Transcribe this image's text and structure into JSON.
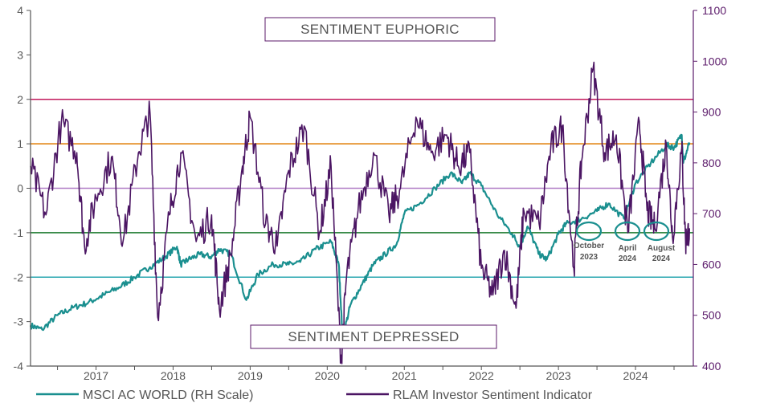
{
  "chart_data": {
    "type": "line",
    "title": "",
    "left_axis": {
      "label": "",
      "ylim": [
        -4,
        4
      ],
      "ticks": [
        "4",
        "3",
        "2",
        "1",
        "0",
        "-1",
        "-2",
        "-3",
        "-4"
      ],
      "color": "#5a5a5a"
    },
    "right_axis": {
      "label": "",
      "ylim": [
        400,
        1100
      ],
      "ticks": [
        "1100",
        "1000",
        "900",
        "800",
        "700",
        "600",
        "500",
        "400"
      ],
      "color": "#5b1a6a"
    },
    "x_axis": {
      "xlim": [
        2016.15,
        2024.75
      ],
      "tick_labels": [
        "2017",
        "2018",
        "2019",
        "2020",
        "2021",
        "2022",
        "2023",
        "2024"
      ],
      "tick_values": [
        2017,
        2018,
        2019,
        2020,
        2021,
        2022,
        2023,
        2024
      ]
    },
    "reference_lines": [
      {
        "y": 2,
        "color": "#c2185b"
      },
      {
        "y": 1,
        "color": "#e07b00"
      },
      {
        "y": 0,
        "color": "#b07cc6"
      },
      {
        "y": -1,
        "color": "#1b7a2e"
      },
      {
        "y": -2,
        "color": "#2aa7b0"
      }
    ],
    "series": [
      {
        "name": "MSCI AC WORLD (RH Scale)",
        "axis": "right",
        "color": "#1a8f8f",
        "points": [
          [
            2016.15,
            480
          ],
          [
            2016.3,
            472
          ],
          [
            2016.5,
            500
          ],
          [
            2016.7,
            515
          ],
          [
            2016.9,
            525
          ],
          [
            2017.1,
            540
          ],
          [
            2017.3,
            555
          ],
          [
            2017.5,
            575
          ],
          [
            2017.7,
            595
          ],
          [
            2017.9,
            615
          ],
          [
            2018.05,
            635
          ],
          [
            2018.1,
            600
          ],
          [
            2018.2,
            610
          ],
          [
            2018.35,
            620
          ],
          [
            2018.5,
            615
          ],
          [
            2018.6,
            630
          ],
          [
            2018.75,
            620
          ],
          [
            2018.95,
            530
          ],
          [
            2019.1,
            580
          ],
          [
            2019.3,
            600
          ],
          [
            2019.5,
            600
          ],
          [
            2019.65,
            605
          ],
          [
            2019.85,
            630
          ],
          [
            2020.05,
            645
          ],
          [
            2020.15,
            600
          ],
          [
            2020.2,
            455
          ],
          [
            2020.3,
            520
          ],
          [
            2020.45,
            560
          ],
          [
            2020.6,
            600
          ],
          [
            2020.75,
            620
          ],
          [
            2020.9,
            640
          ],
          [
            2021.0,
            700
          ],
          [
            2021.2,
            720
          ],
          [
            2021.4,
            750
          ],
          [
            2021.6,
            780
          ],
          [
            2021.75,
            760
          ],
          [
            2021.85,
            780
          ],
          [
            2022.0,
            755
          ],
          [
            2022.2,
            700
          ],
          [
            2022.4,
            660
          ],
          [
            2022.5,
            635
          ],
          [
            2022.6,
            675
          ],
          [
            2022.75,
            620
          ],
          [
            2022.85,
            610
          ],
          [
            2023.0,
            660
          ],
          [
            2023.1,
            680
          ],
          [
            2023.3,
            690
          ],
          [
            2023.5,
            705
          ],
          [
            2023.65,
            720
          ],
          [
            2023.85,
            690
          ],
          [
            2024.0,
            760
          ],
          [
            2024.2,
            800
          ],
          [
            2024.4,
            835
          ],
          [
            2024.5,
            830
          ],
          [
            2024.6,
            855
          ],
          [
            2024.62,
            800
          ],
          [
            2024.7,
            840
          ]
        ]
      },
      {
        "name": "RLAM Investor Sentiment Indicator",
        "axis": "left",
        "color": "#4b1563",
        "points": [
          [
            2016.15,
            0.5
          ],
          [
            2016.35,
            -0.6
          ],
          [
            2016.55,
            1.5
          ],
          [
            2016.75,
            0.8
          ],
          [
            2016.85,
            -1.3
          ],
          [
            2017.0,
            -0.2
          ],
          [
            2017.2,
            0.7
          ],
          [
            2017.35,
            -1.2
          ],
          [
            2017.55,
            0.8
          ],
          [
            2017.7,
            1.7
          ],
          [
            2017.8,
            -2.9
          ],
          [
            2017.95,
            -0.6
          ],
          [
            2018.1,
            0.8
          ],
          [
            2018.3,
            -1.2
          ],
          [
            2018.5,
            -0.6
          ],
          [
            2018.6,
            -2.7
          ],
          [
            2018.75,
            -1.5
          ],
          [
            2018.9,
            0.5
          ],
          [
            2019.0,
            1.6
          ],
          [
            2019.2,
            -0.8
          ],
          [
            2019.35,
            -1.3
          ],
          [
            2019.5,
            0.4
          ],
          [
            2019.7,
            1.4
          ],
          [
            2019.9,
            -1.0
          ],
          [
            2020.05,
            0.5
          ],
          [
            2020.18,
            -3.9
          ],
          [
            2020.25,
            -2.0
          ],
          [
            2020.4,
            -0.5
          ],
          [
            2020.6,
            0.8
          ],
          [
            2020.8,
            -0.6
          ],
          [
            2020.95,
            0.0
          ],
          [
            2021.15,
            1.6
          ],
          [
            2021.35,
            0.8
          ],
          [
            2021.55,
            1.2
          ],
          [
            2021.7,
            0.5
          ],
          [
            2021.85,
            0.8
          ],
          [
            2022.0,
            -1.8
          ],
          [
            2022.15,
            -2.4
          ],
          [
            2022.3,
            -1.4
          ],
          [
            2022.45,
            -2.7
          ],
          [
            2022.55,
            -0.5
          ],
          [
            2022.75,
            -0.8
          ],
          [
            2022.9,
            0.9
          ],
          [
            2023.05,
            1.4
          ],
          [
            2023.2,
            -1.8
          ],
          [
            2023.3,
            0.6
          ],
          [
            2023.45,
            2.7
          ],
          [
            2023.6,
            0.8
          ],
          [
            2023.75,
            1.2
          ],
          [
            2023.9,
            -1.0
          ],
          [
            2024.05,
            1.5
          ],
          [
            2024.15,
            -0.5
          ],
          [
            2024.25,
            -0.9
          ],
          [
            2024.4,
            1.0
          ],
          [
            2024.48,
            -1.1
          ],
          [
            2024.6,
            0.9
          ],
          [
            2024.65,
            -1.2
          ],
          [
            2024.7,
            -0.9
          ]
        ]
      }
    ],
    "annotations": [
      {
        "text": "SENTIMENT EUPHORIC",
        "x": 2019.3,
        "y": 3.6
      },
      {
        "text": "SENTIMENT DEPRESSED",
        "x": 2019.3,
        "y": -3.4
      }
    ],
    "circled_points": [
      {
        "line1": "October",
        "line2": "2023",
        "x": 2023.3,
        "y": -1.0
      },
      {
        "line1": "April",
        "line2": "2024",
        "x": 2024.0,
        "y": -1.0
      },
      {
        "line1": "August",
        "line2": "2024",
        "x": 2024.45,
        "y": -1.0
      }
    ],
    "legend_position": "bottom"
  }
}
